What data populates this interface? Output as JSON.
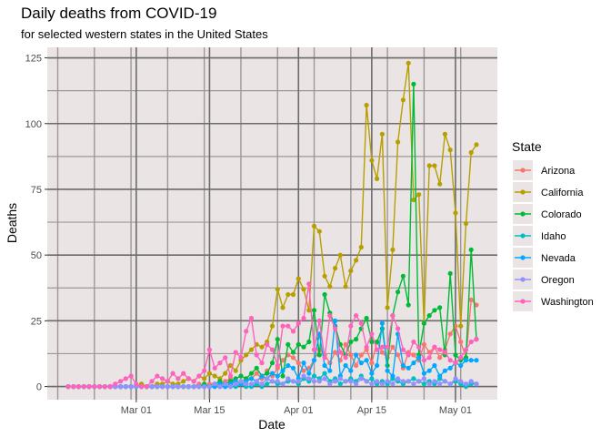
{
  "chart_data": {
    "type": "line",
    "title": "Daily deaths from COVID-19",
    "subtitle": "for selected western states in the United States",
    "xlabel": "Date",
    "ylabel": "Deaths",
    "x_start": "2020-02-17",
    "x_end": "2020-05-05",
    "xlim": [
      "2020-02-13",
      "2020-05-09"
    ],
    "ylim": [
      -5,
      129
    ],
    "xticks": [
      {
        "date": "2020-03-01",
        "label": "Mar 01"
      },
      {
        "date": "2020-03-15",
        "label": "Mar 15"
      },
      {
        "date": "2020-04-01",
        "label": "Apr 01"
      },
      {
        "date": "2020-04-15",
        "label": "Apr 15"
      },
      {
        "date": "2020-05-01",
        "label": "May 01"
      }
    ],
    "yticks": [
      0,
      25,
      50,
      75,
      100,
      125
    ],
    "grid": true,
    "panel_background": "#ebe4e4",
    "legend": {
      "title": "State",
      "position": "right"
    },
    "series": [
      {
        "name": "Arizona",
        "color": "#F8766D",
        "values": [
          0,
          0,
          0,
          0,
          0,
          0,
          0,
          0,
          0,
          0,
          0,
          0,
          0,
          0,
          0,
          0,
          0,
          0,
          0,
          0,
          0,
          0,
          0,
          0,
          0,
          1,
          0,
          1,
          1,
          0,
          2,
          3,
          1,
          2,
          3,
          3,
          5,
          3,
          6,
          4,
          7,
          10,
          12,
          11,
          9,
          6,
          7,
          10,
          14,
          12,
          9,
          13,
          10,
          16,
          12,
          8,
          12,
          14,
          9,
          17,
          13,
          11,
          15,
          12,
          7,
          13,
          12,
          10,
          16,
          13,
          15,
          11,
          14,
          20,
          23,
          17,
          11,
          33,
          31
        ]
      },
      {
        "name": "California",
        "color": "#B79F00",
        "values": [
          0,
          0,
          0,
          0,
          0,
          0,
          0,
          0,
          0,
          0,
          0,
          0,
          0,
          0,
          1,
          0,
          0,
          1,
          1,
          2,
          1,
          1,
          2,
          3,
          2,
          4,
          3,
          5,
          4,
          3,
          5,
          8,
          6,
          10,
          12,
          14,
          16,
          15,
          17,
          23,
          37,
          30,
          35,
          35,
          41,
          37,
          29,
          61,
          59,
          42,
          38,
          45,
          50,
          38,
          44,
          48,
          53,
          107,
          86,
          79,
          96,
          30,
          52,
          93,
          109,
          123,
          71,
          73,
          24,
          84,
          84,
          77,
          96,
          90,
          66,
          23,
          62,
          89,
          92
        ]
      },
      {
        "name": "Colorado",
        "color": "#00BA38",
        "values": [
          0,
          0,
          0,
          0,
          0,
          0,
          0,
          0,
          0,
          0,
          0,
          0,
          0,
          0,
          0,
          0,
          0,
          0,
          0,
          0,
          0,
          0,
          0,
          0,
          0,
          0,
          1,
          0,
          1,
          2,
          1,
          2,
          3,
          4,
          3,
          5,
          7,
          4,
          5,
          9,
          18,
          4,
          16,
          13,
          16,
          15,
          17,
          29,
          12,
          35,
          28,
          23,
          16,
          12,
          17,
          18,
          22,
          26,
          17,
          17,
          22,
          8,
          27,
          36,
          42,
          31,
          115,
          12,
          24,
          27,
          29,
          30,
          12,
          43,
          12,
          10,
          11,
          52,
          18
        ]
      },
      {
        "name": "Idaho",
        "color": "#00BFC4",
        "values": [
          0,
          0,
          0,
          0,
          0,
          0,
          0,
          0,
          0,
          0,
          0,
          0,
          0,
          0,
          0,
          0,
          0,
          0,
          0,
          0,
          0,
          0,
          0,
          0,
          0,
          0,
          0,
          0,
          0,
          0,
          0,
          0,
          0,
          1,
          0,
          0,
          1,
          0,
          1,
          2,
          1,
          1,
          2,
          2,
          1,
          3,
          2,
          4,
          3,
          5,
          2,
          3,
          1,
          2,
          3,
          2,
          4,
          2,
          3,
          1,
          2,
          1,
          3,
          2,
          1,
          2,
          3,
          2,
          1,
          2,
          1,
          3,
          2,
          1,
          2,
          1,
          0,
          1,
          1
        ]
      },
      {
        "name": "Nevada",
        "color": "#00A9FF",
        "values": [
          0,
          0,
          0,
          0,
          0,
          0,
          0,
          0,
          0,
          0,
          0,
          0,
          0,
          0,
          0,
          0,
          0,
          0,
          0,
          0,
          0,
          0,
          0,
          0,
          0,
          0,
          0,
          0,
          0,
          1,
          0,
          1,
          2,
          1,
          2,
          3,
          2,
          4,
          3,
          5,
          4,
          6,
          8,
          7,
          3,
          9,
          5,
          10,
          20,
          8,
          6,
          25,
          4,
          8,
          6,
          12,
          9,
          10,
          5,
          8,
          24,
          6,
          4,
          20,
          8,
          7,
          9,
          11,
          5,
          6,
          8,
          4,
          6,
          7,
          9,
          8,
          10,
          10,
          10
        ]
      },
      {
        "name": "Oregon",
        "color": "#9590FF",
        "values": [
          0,
          0,
          0,
          0,
          0,
          0,
          0,
          0,
          0,
          0,
          0,
          0,
          0,
          0,
          0,
          0,
          0,
          0,
          0,
          0,
          0,
          0,
          0,
          0,
          0,
          0,
          0,
          0,
          1,
          0,
          1,
          0,
          1,
          2,
          1,
          1,
          2,
          1,
          3,
          2,
          2,
          1,
          3,
          2,
          2,
          4,
          3,
          2,
          2,
          3,
          1,
          2,
          3,
          2,
          2,
          1,
          3,
          2,
          1,
          2,
          1,
          2,
          1,
          3,
          2,
          2,
          1,
          2,
          3,
          1,
          2,
          1,
          2,
          1,
          3,
          2,
          1,
          2,
          1
        ]
      },
      {
        "name": "Washington",
        "color": "#FF62BC",
        "values": [
          0,
          0,
          0,
          0,
          0,
          0,
          0,
          0,
          0,
          1,
          2,
          3,
          4,
          1,
          0,
          0,
          2,
          4,
          3,
          2,
          5,
          3,
          5,
          3,
          2,
          4,
          6,
          14,
          7,
          9,
          11,
          4,
          13,
          11,
          21,
          26,
          12,
          9,
          16,
          14,
          8,
          23,
          23,
          21,
          24,
          26,
          39,
          14,
          25,
          11,
          27,
          22,
          13,
          11,
          23,
          27,
          24,
          15,
          20,
          14,
          15,
          15,
          27,
          22,
          14,
          12,
          17,
          15,
          10,
          11,
          15,
          14,
          13,
          10,
          9,
          11,
          14,
          17,
          18
        ]
      }
    ]
  }
}
